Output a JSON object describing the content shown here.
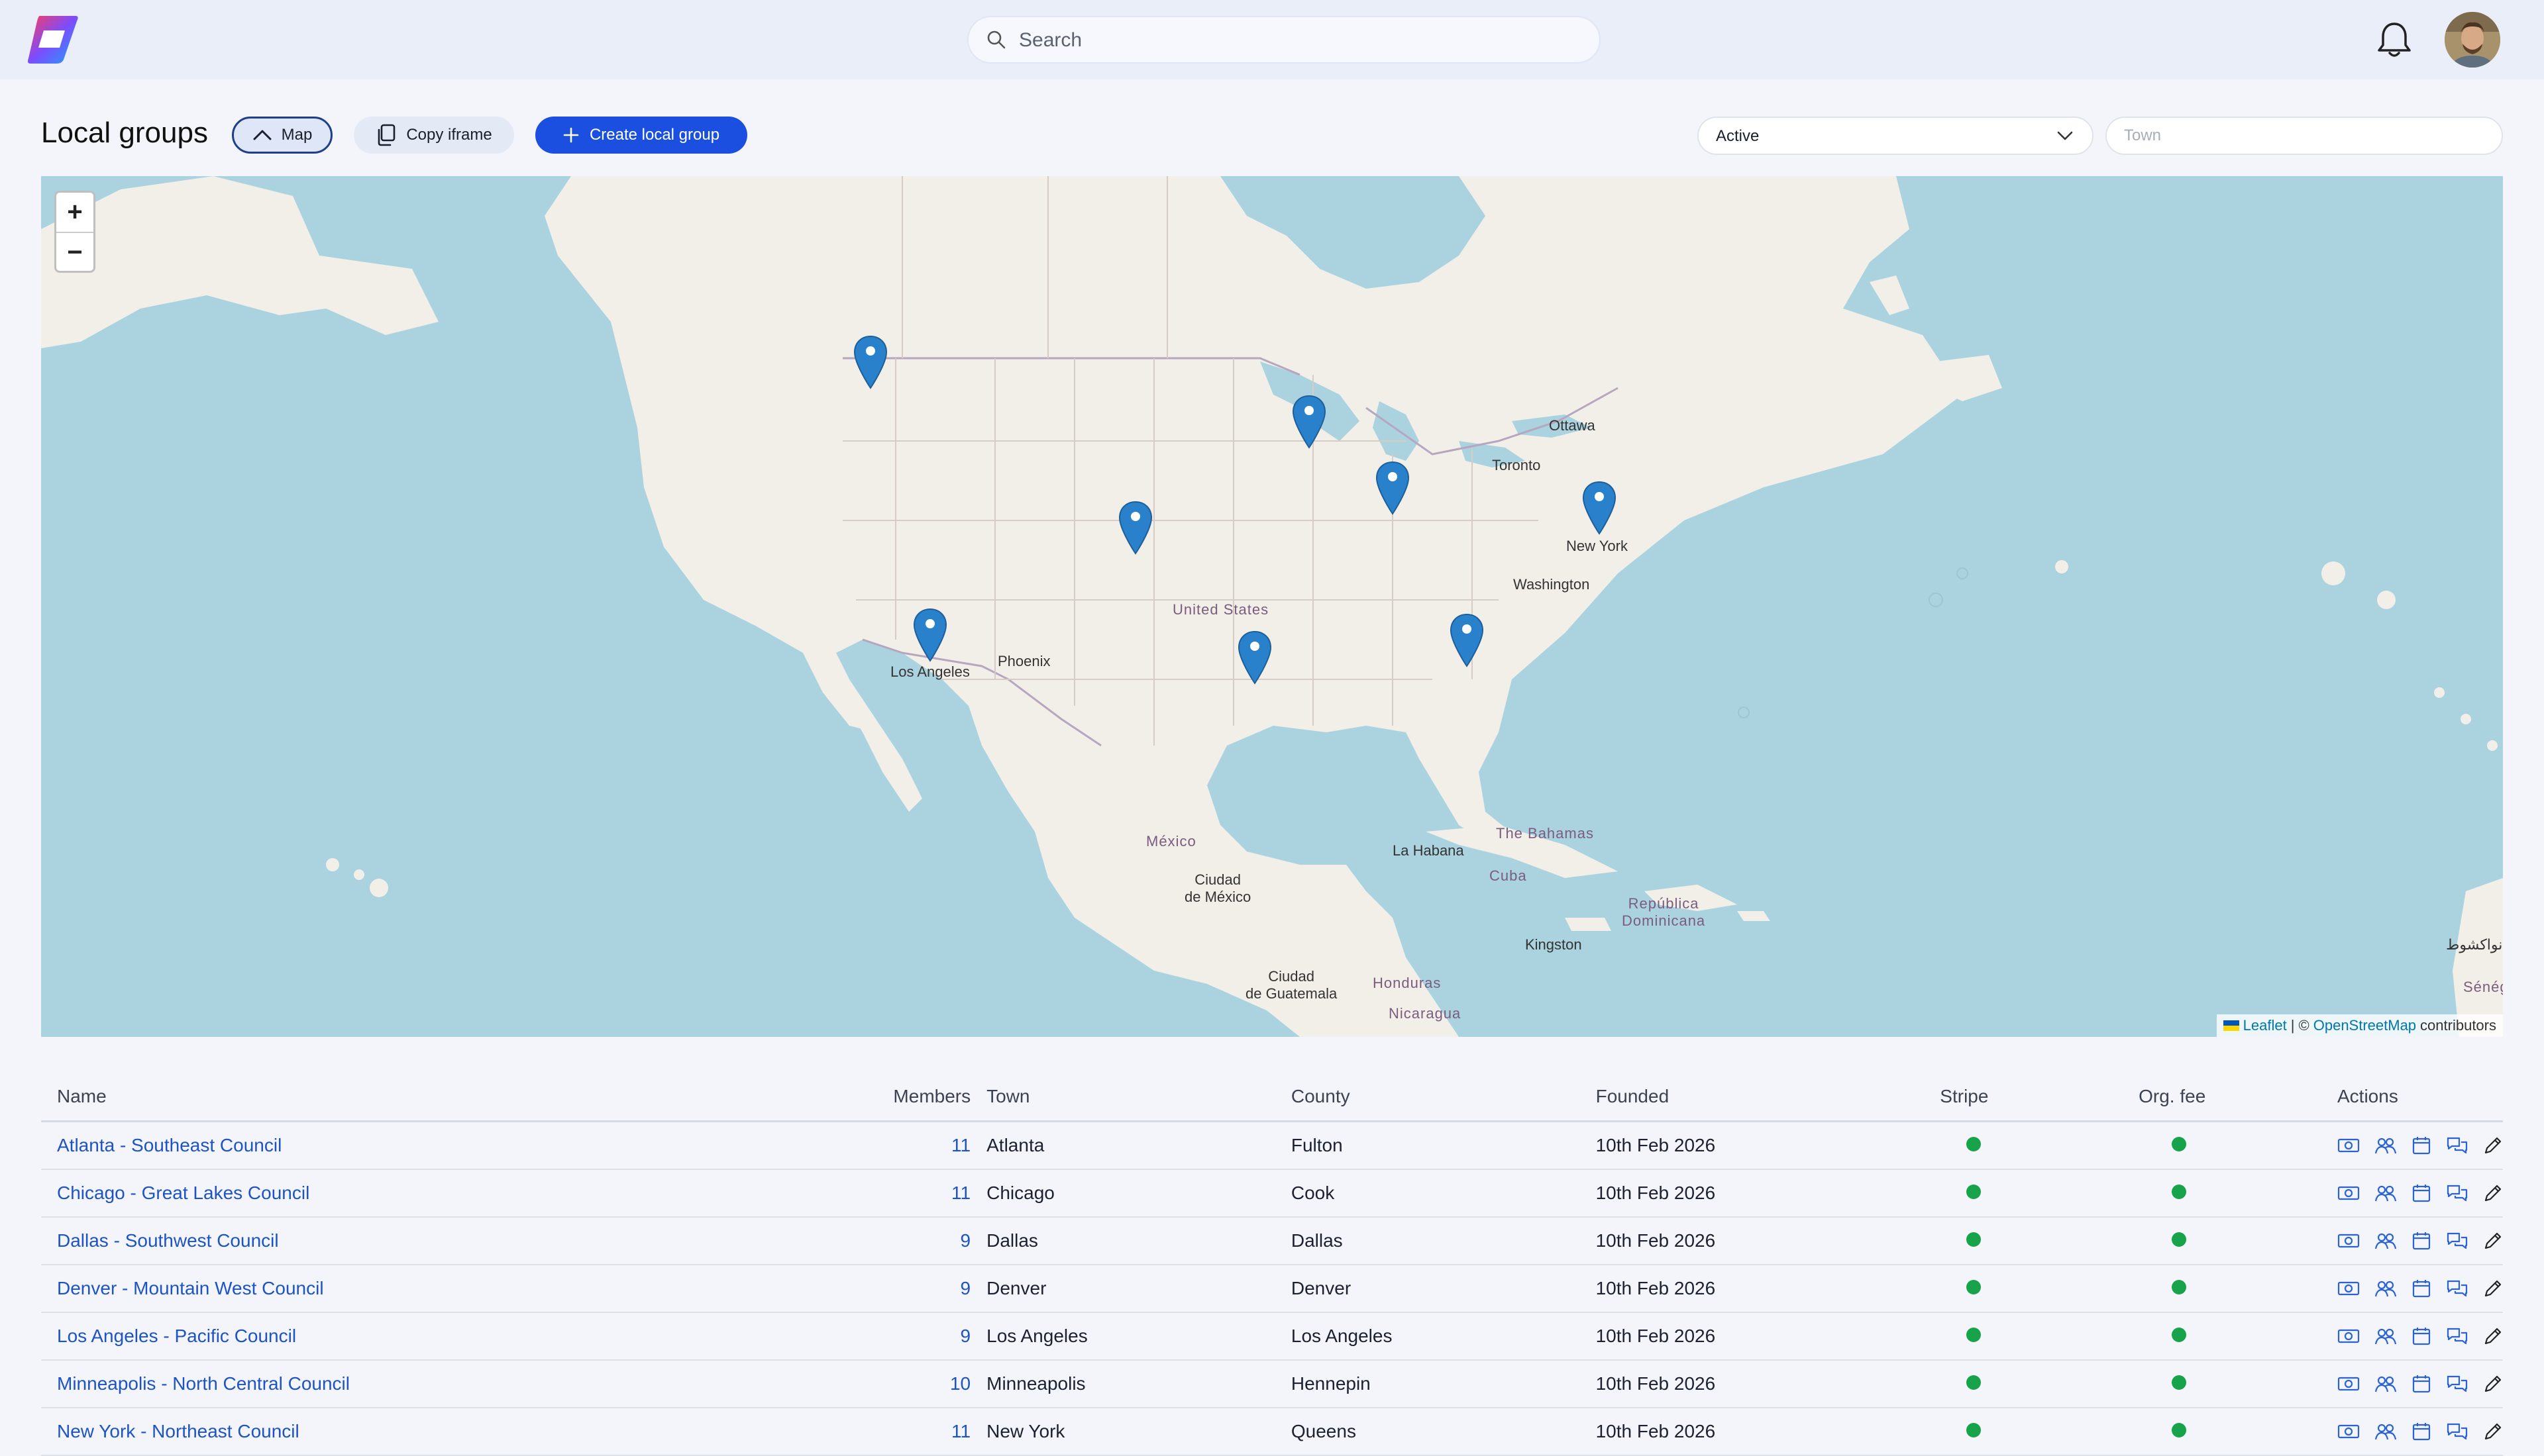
{
  "search": {
    "placeholder": "Search"
  },
  "header": {
    "title": "Local groups",
    "map_button": "Map",
    "copy_button": "Copy iframe",
    "create_button": "Create local group",
    "status_filter": "Active",
    "town_placeholder": "Town"
  },
  "map": {
    "zoom_in": "+",
    "zoom_out": "−",
    "attribution_leaflet": "Leaflet",
    "attribution_sep": "| ©",
    "attribution_osm": "OpenStreetMap",
    "attribution_tail": "contributors",
    "labels": {
      "ottawa": "Ottawa",
      "toronto": "Toronto",
      "new_york": "New York",
      "washington": "Washington",
      "united_states": "United States",
      "los_angeles": "Los Angeles",
      "phoenix": "Phoenix",
      "mexico": "México",
      "ciudad_de_mexico": "Ciudad\nde México",
      "la_habana": "La Habana",
      "bahamas": "The Bahamas",
      "cuba": "Cuba",
      "republica_dominicana": "República\nDominicana",
      "kingston": "Kingston",
      "ciudad_de_guatemala": "Ciudad\nde Guatemala",
      "honduras": "Honduras",
      "nicaragua": "Nicaragua",
      "senegal": "Sénég",
      "nouakchott": "نواكشوط"
    }
  },
  "table": {
    "columns": {
      "name": "Name",
      "members": "Members",
      "town": "Town",
      "county": "County",
      "founded": "Founded",
      "stripe": "Stripe",
      "org_fee": "Org. fee",
      "actions": "Actions"
    },
    "rows": [
      {
        "name": "Atlanta - Southeast Council",
        "members": "11",
        "town": "Atlanta",
        "county": "Fulton",
        "founded": "10th Feb 2026"
      },
      {
        "name": "Chicago - Great Lakes Council",
        "members": "11",
        "town": "Chicago",
        "county": "Cook",
        "founded": "10th Feb 2026"
      },
      {
        "name": "Dallas - Southwest Council",
        "members": "9",
        "town": "Dallas",
        "county": "Dallas",
        "founded": "10th Feb 2026"
      },
      {
        "name": "Denver - Mountain West Council",
        "members": "9",
        "town": "Denver",
        "county": "Denver",
        "founded": "10th Feb 2026"
      },
      {
        "name": "Los Angeles - Pacific Council",
        "members": "9",
        "town": "Los Angeles",
        "county": "Los Angeles",
        "founded": "10th Feb 2026"
      },
      {
        "name": "Minneapolis - North Central Council",
        "members": "10",
        "town": "Minneapolis",
        "county": "Hennepin",
        "founded": "10th Feb 2026"
      },
      {
        "name": "New York - Northeast Council",
        "members": "11",
        "town": "New York",
        "county": "Queens",
        "founded": "10th Feb 2026"
      }
    ]
  },
  "colors": {
    "accent": "#1a4fe0",
    "link": "#1e53c5",
    "status_ok": "#17a34a",
    "water": "#aad3df",
    "land": "#f2efe9",
    "marker": "#2a81cb"
  }
}
